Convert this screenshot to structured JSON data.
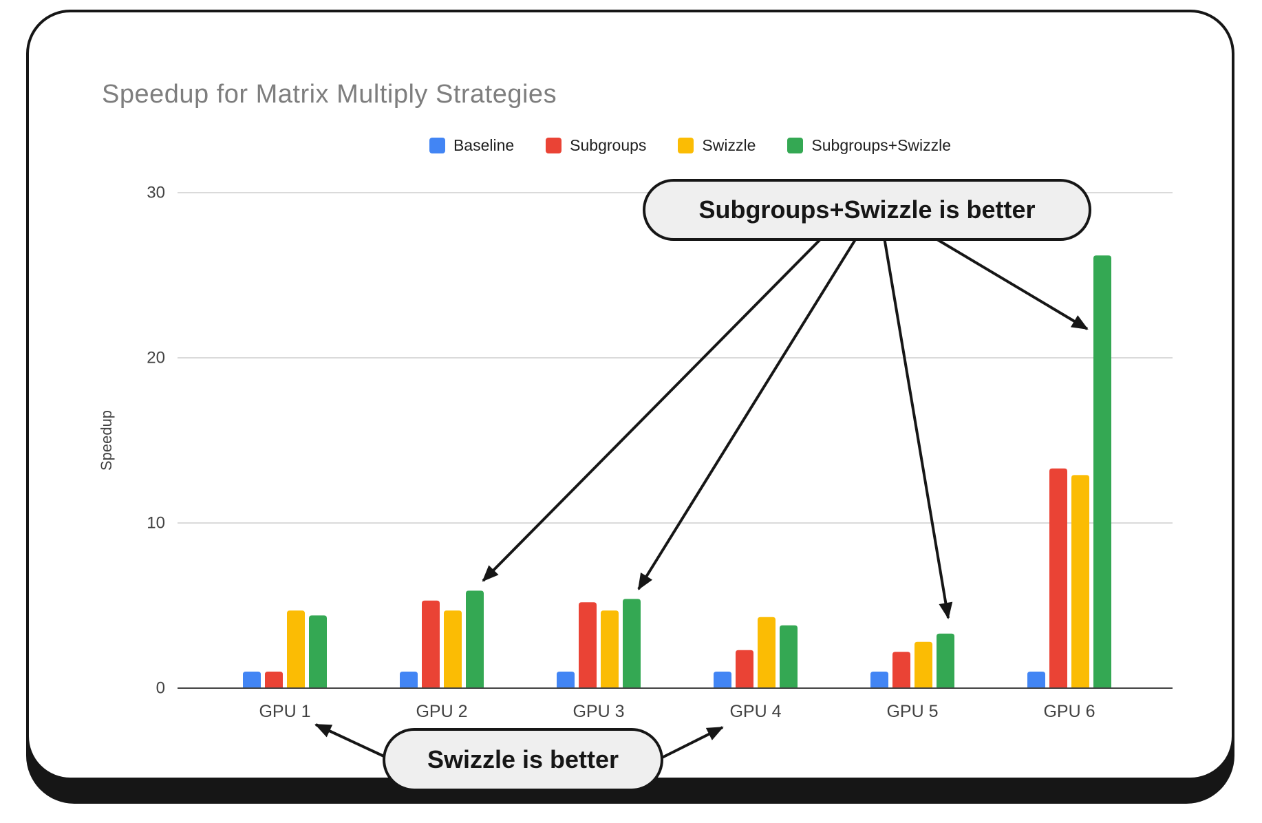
{
  "chart_data": {
    "type": "bar",
    "title": "Speedup for Matrix Multiply Strategies",
    "xlabel": "",
    "ylabel": "Speedup",
    "ylim": [
      0,
      30
    ],
    "yticks": [
      0,
      10,
      20,
      30
    ],
    "grid": true,
    "legend_position": "top",
    "categories": [
      "GPU 1",
      "GPU 2",
      "GPU 3",
      "GPU 4",
      "GPU 5",
      "GPU 6"
    ],
    "series": [
      {
        "name": "Baseline",
        "color": "#4285F4",
        "values": [
          1.0,
          1.0,
          1.0,
          1.0,
          1.0,
          1.0
        ]
      },
      {
        "name": "Subgroups",
        "color": "#EA4335",
        "values": [
          1.0,
          5.3,
          5.2,
          2.3,
          2.2,
          13.3
        ]
      },
      {
        "name": "Swizzle",
        "color": "#FBBC04",
        "values": [
          4.7,
          4.7,
          4.7,
          4.3,
          2.8,
          12.9
        ]
      },
      {
        "name": "Subgroups+Swizzle",
        "color": "#34A853",
        "values": [
          4.4,
          5.9,
          5.4,
          3.8,
          3.3,
          26.2
        ]
      }
    ]
  },
  "annotations": {
    "top": {
      "label": "Subgroups+Swizzle is better",
      "targets": [
        "GPU 2",
        "GPU 3",
        "GPU 5",
        "GPU 6"
      ]
    },
    "bottom": {
      "label": "Swizzle is better",
      "targets": [
        "GPU 1",
        "GPU 4"
      ]
    }
  },
  "colors": {
    "card_border": "#161616",
    "grid": "#dadada",
    "axis": "#424242",
    "title": "#7e7e7e",
    "callout_bg": "#efefef"
  }
}
